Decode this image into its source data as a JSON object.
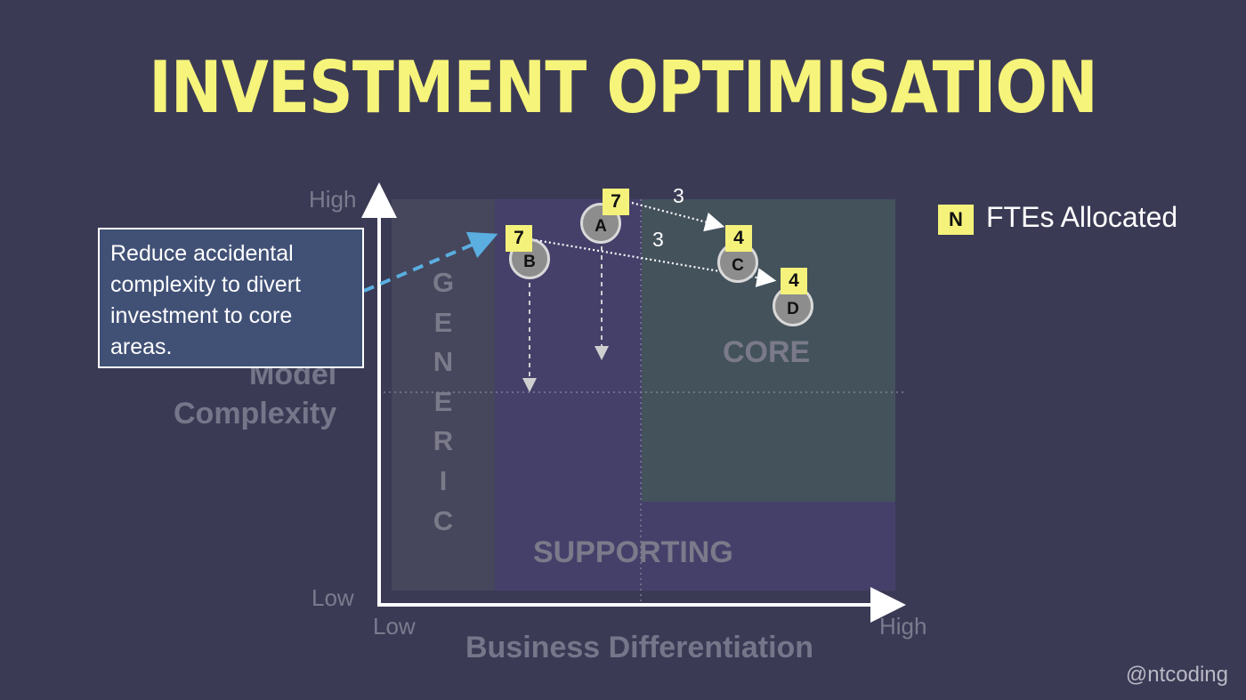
{
  "title": "INVESTMENT OPTIMISATION",
  "y_axis": {
    "title_line1": "Model",
    "title_line2": "Complexity",
    "high": "High",
    "low": "Low"
  },
  "x_axis": {
    "title": "Business Differentiation",
    "low": "Low",
    "high": "High"
  },
  "zones": {
    "generic_letters": [
      "G",
      "E",
      "N",
      "E",
      "R",
      "I",
      "C"
    ],
    "supporting": "SUPPORTING",
    "core": "CORE"
  },
  "nodes": {
    "A": {
      "label": "A",
      "ftes": "7"
    },
    "B": {
      "label": "B",
      "ftes": "7"
    },
    "C": {
      "label": "C",
      "ftes": "4"
    },
    "D": {
      "label": "D",
      "ftes": "4"
    }
  },
  "arrows": {
    "a_to_c": "3",
    "b_to_d": "3"
  },
  "callout": "Reduce accidental complexity to divert investment to core areas.",
  "legend": {
    "symbol": "N",
    "text": "FTEs Allocated"
  },
  "handle": "@ntcoding",
  "colors": {
    "title": "#f6f47a",
    "badge": "#f4f27a",
    "background": "#3b3a55",
    "callout_arrow": "#5aaee0"
  }
}
